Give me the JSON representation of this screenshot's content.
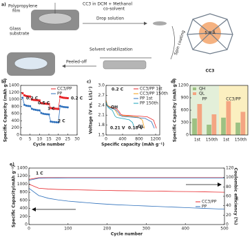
{
  "panel_a": {
    "label": "a)",
    "film": [
      "Polypropylene",
      "film"
    ],
    "solution": [
      "CC3 in DCM + Methanol",
      "co-solvent"
    ],
    "drop": "Drop solution",
    "substrate": [
      "Glass",
      "substrate"
    ],
    "spin": "Spin coating",
    "volatilization": "Solvent volatilization",
    "peel": "Peeled-off",
    "molecule": "CC3",
    "pore": "5.8 Å"
  },
  "chart_data": [
    {
      "type": "line",
      "label": "b)",
      "xlabel": "Cycle number",
      "ylabel": "Specific Capacity (mAh g⁻¹)",
      "x": [
        1,
        2,
        3,
        4,
        5,
        6,
        7,
        8,
        9,
        10,
        11,
        12,
        13,
        14,
        15,
        16,
        17,
        18,
        19,
        20,
        21,
        22,
        23,
        24,
        25
      ],
      "xlim": [
        0,
        30
      ],
      "xticks": [
        0,
        5,
        10,
        15,
        20,
        25,
        30
      ],
      "ylim": [
        0,
        1400
      ],
      "yticks": [
        0,
        200,
        400,
        600,
        800,
        1000,
        1200,
        1400
      ],
      "legend": "upper right",
      "annotations": [
        "0.2 C",
        "0.5 C",
        "1 C",
        "2 C",
        "0.2 C"
      ],
      "series": [
        {
          "name": "CC3/PP",
          "color": "#e8262a",
          "marker": "square",
          "values": [
            1180,
            1120,
            1100,
            1090,
            1085,
            1000,
            990,
            985,
            980,
            975,
            900,
            890,
            885,
            880,
            875,
            760,
            750,
            745,
            740,
            735,
            1080,
            1060,
            1050,
            1045,
            1040
          ]
        },
        {
          "name": "PP",
          "color": "#2c6fbb",
          "marker": "circle",
          "values": [
            1050,
            850,
            830,
            820,
            815,
            740,
            720,
            710,
            700,
            695,
            620,
            600,
            590,
            585,
            580,
            380,
            370,
            365,
            360,
            355,
            820,
            800,
            790,
            785,
            780
          ]
        }
      ]
    },
    {
      "type": "line",
      "label": "c)",
      "xlabel": "Specific capacity (mAh g⁻¹)",
      "ylabel": "Voltage (V vs. Li/Li⁺)",
      "xlim": [
        0,
        1300
      ],
      "xticks": [
        0,
        400,
        800,
        1200
      ],
      "ylim": [
        1.5,
        3.0
      ],
      "yticks": [
        1.5,
        1.8,
        2.1,
        2.4,
        2.7,
        {
          "value": 3,
          "label": "3.0"
        }
      ],
      "legend": "upper right",
      "annotations": [
        "0.2 C",
        "QH",
        "QL",
        "0.21 V",
        "0.18 V"
      ],
      "series": [
        {
          "name": "CC3/PP 1st",
          "color": "#e8262a",
          "x": [
            0,
            30,
            100,
            250,
            320,
            360,
            420,
            700,
            1000,
            1150,
            1220
          ],
          "values": [
            2.55,
            2.4,
            2.35,
            2.3,
            2.2,
            2.12,
            2.1,
            2.08,
            2.05,
            1.95,
            1.7
          ]
        },
        {
          "name": "CC3/PP 150th",
          "color": "#f39c12",
          "x": [
            0,
            30,
            100,
            200,
            250,
            290,
            340,
            550,
            780,
            880,
            930
          ],
          "values": [
            2.55,
            2.4,
            2.34,
            2.29,
            2.2,
            2.11,
            2.09,
            2.07,
            2.04,
            1.95,
            1.7
          ]
        },
        {
          "name": "PP 1st",
          "color": "#2c6fbb",
          "x": [
            0,
            30,
            100,
            230,
            300,
            340,
            400,
            650,
            950,
            1100,
            1170
          ],
          "values": [
            2.5,
            2.38,
            2.32,
            2.27,
            2.18,
            2.1,
            2.06,
            2.04,
            2.0,
            1.9,
            1.7
          ]
        },
        {
          "name": "PP 150th",
          "color": "#17a2b8",
          "x": [
            0,
            30,
            80,
            150,
            190,
            220,
            260,
            400,
            560,
            640,
            690
          ],
          "values": [
            2.5,
            2.37,
            2.3,
            2.25,
            2.15,
            2.07,
            2.03,
            2.0,
            1.96,
            1.88,
            1.7
          ]
        }
      ]
    },
    {
      "type": "bar",
      "label": "d)",
      "ylabel": "Specific Capacity (mAh g⁻¹)",
      "categories": [
        "1st",
        "150th",
        "1st",
        "150th"
      ],
      "groups": [
        {
          "name": "PP",
          "color": "#e3efd9"
        },
        {
          "name": "CC3/PP",
          "color": "#fbefc0"
        }
      ],
      "ylim": [
        0,
        1200
      ],
      "yticks": [
        0,
        300,
        600,
        900,
        1200
      ],
      "legend": "upper left",
      "series": [
        {
          "name": "QH",
          "color": "#9dc183",
          "values": [
            400,
            250,
            420,
            300
          ]
        },
        {
          "name": "QL",
          "color": "#f4a582",
          "values": [
            750,
            500,
            820,
            560
          ]
        }
      ]
    },
    {
      "type": "line",
      "label": "e)",
      "xlabel": "Cycle number",
      "ylabel": "Specific Capacity(mAh g⁻¹)",
      "y2label": "Coulombic efficiency (%)",
      "x": [
        0,
        25,
        50,
        75,
        100,
        125,
        150,
        175,
        200,
        225,
        250,
        275,
        300,
        325,
        350,
        375,
        400,
        425,
        450,
        475,
        500
      ],
      "xlim": [
        0,
        500
      ],
      "xticks": [
        0,
        100,
        200,
        300,
        400,
        500
      ],
      "ylim": [
        0,
        1400
      ],
      "yticks": [
        0,
        200,
        400,
        600,
        800,
        1000,
        1200,
        1400
      ],
      "y2lim": [
        0,
        120
      ],
      "y2ticks": [
        0,
        20,
        40,
        60,
        80,
        100,
        120
      ],
      "legend": "center right",
      "annotations": [
        "1 C"
      ],
      "series": [
        {
          "name": "CC3/PP",
          "color": "#e8262a",
          "values": [
            1000,
            900,
            880,
            870,
            865,
            860,
            855,
            850,
            845,
            840,
            838,
            835,
            830,
            828,
            825,
            820,
            818,
            815,
            810,
            805,
            800
          ]
        },
        {
          "name": "PP",
          "color": "#2c6fbb",
          "values": [
            900,
            720,
            650,
            610,
            580,
            560,
            540,
            520,
            505,
            490,
            480,
            470,
            460,
            450,
            440,
            430,
            420,
            410,
            400,
            390,
            380
          ]
        },
        {
          "color": "#e8262a",
          "axis": "y2",
          "values": [
            96,
            99.5,
            99.6,
            99.6,
            99.7,
            99.7,
            99.7,
            99.7,
            99.7,
            99.7,
            99.7,
            99.7,
            99.7,
            99.7,
            99.7,
            99.7,
            99.7,
            99.7,
            99.7,
            99.7,
            99.7
          ]
        },
        {
          "color": "#2c6fbb",
          "axis": "y2",
          "values": [
            94,
            98.5,
            98.8,
            98.9,
            99,
            99,
            99,
            99,
            99,
            99,
            99,
            99,
            99,
            99,
            99,
            99,
            99,
            99,
            99,
            99,
            99
          ]
        }
      ]
    }
  ]
}
